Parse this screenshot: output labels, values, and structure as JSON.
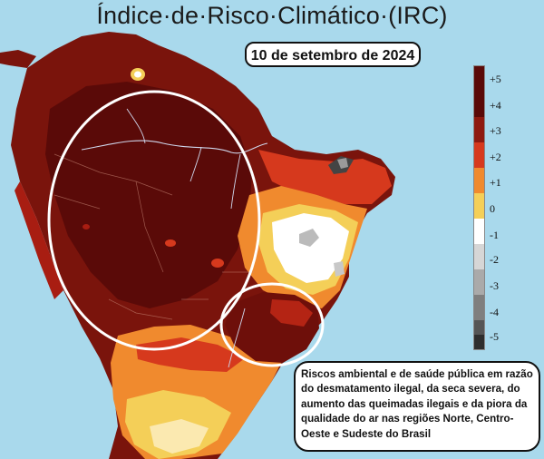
{
  "title": "Índice·de·Risco·Climático·(IRC)",
  "date_label": "10 de setembro de 2024",
  "legend": {
    "levels": [
      {
        "label": "+5",
        "color": "#5a0a08"
      },
      {
        "label": "+4",
        "color": "#8e1a10"
      },
      {
        "label": "+3",
        "color": "#d6391d"
      },
      {
        "label": "+2",
        "color": "#f08a2e"
      },
      {
        "label": "+1",
        "color": "#f4cf58"
      },
      {
        "label": "0",
        "color": "#ffffff"
      },
      {
        "label": "-1",
        "color": "#d6d6d6"
      },
      {
        "label": "-2",
        "color": "#aaaaaa"
      },
      {
        "label": "-3",
        "color": "#7f7f7f"
      },
      {
        "label": "-4",
        "color": "#555555"
      },
      {
        "label": "-5",
        "color": "#2e2e2e"
      }
    ]
  },
  "note": "Riscos ambiental e de saúde pública em razão do desmatamento ilegal, da seca severa, do aumento das queimadas ilegais e da piora da qualidade do ar nas regiões Norte, Centro-Oeste e Sudeste do Brasil",
  "colors": {
    "ocean": "#a9d9ec",
    "highlight": "#ffffff"
  }
}
